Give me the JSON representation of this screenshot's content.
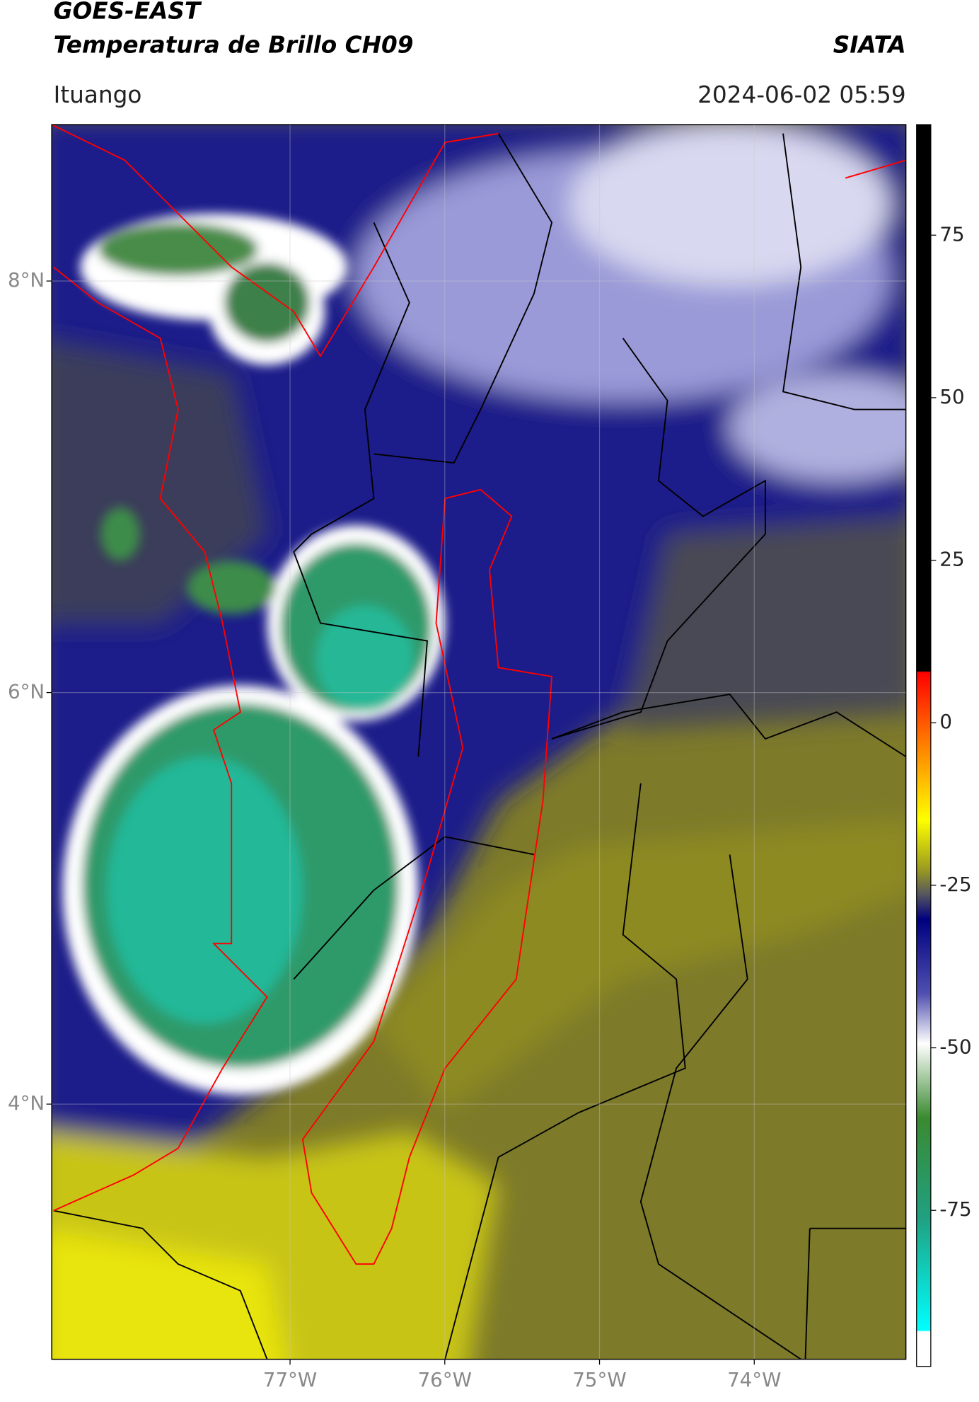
{
  "header": {
    "title": "GOES-EAST",
    "subtitle": "Temperatura de Brillo CH09",
    "source": "SIATA",
    "location": "Ituango",
    "datetime": "2024-06-02 05:59"
  },
  "map": {
    "xlim": [
      -78.54,
      -73.02
    ],
    "ylim": [
      2.76,
      8.76
    ],
    "xticks": [
      {
        "value": -77,
        "label": "77°W"
      },
      {
        "value": -76,
        "label": "76°W"
      },
      {
        "value": -75,
        "label": "75°W"
      },
      {
        "value": -74,
        "label": "74°W"
      }
    ],
    "yticks": [
      {
        "value": 8,
        "label": "8°N"
      },
      {
        "value": 6,
        "label": "6°N"
      },
      {
        "value": 4,
        "label": "4°N"
      }
    ],
    "grid": true
  },
  "colorbar": {
    "lim": [
      -99,
      92
    ],
    "ticks": [
      75,
      50,
      25,
      0,
      -25,
      -50,
      -75
    ]
  }
}
